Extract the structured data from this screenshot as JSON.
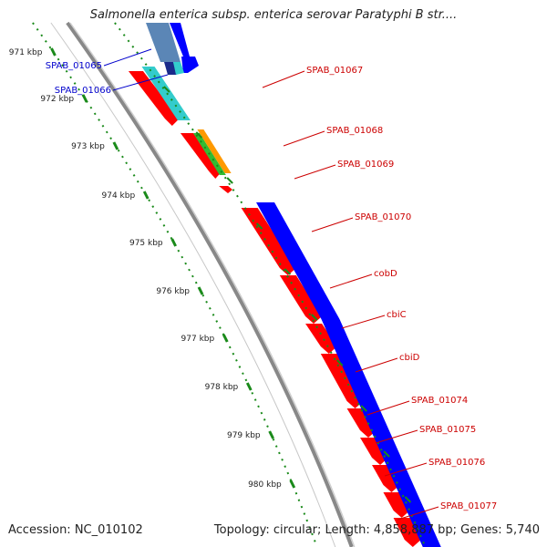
{
  "title": "Salmonella enterica subsp. enterica serovar Paratyphi B str....",
  "accession": "Accession: NC_010102",
  "summary": "Topology: circular; Length: 4,858,887 bp; Genes: 5,740",
  "colors": {
    "forward_cds": "#ff0000",
    "reverse_cds": "#0000ff",
    "cyan_feature": "#33cccc",
    "green_feature": "#33bb33",
    "orange_feature": "#ff9900",
    "steelblue_feature": "#5b86b6",
    "backbone": "#888888",
    "ruler": "#1a8a1a",
    "blue_label": "#0000cc",
    "red_label": "#cc0000"
  },
  "ticks": [
    "971 kbp",
    "972 kbp",
    "973 kbp",
    "974 kbp",
    "975 kbp",
    "976 kbp",
    "977 kbp",
    "978 kbp",
    "979 kbp",
    "980 kbp"
  ],
  "genes_left": [
    {
      "label": "SPAB_01065",
      "color": "blue"
    },
    {
      "label": "SPAB_01066",
      "color": "blue"
    }
  ],
  "genes_right": [
    {
      "label": "SPAB_01067",
      "color": "red"
    },
    {
      "label": "SPAB_01068",
      "color": "red"
    },
    {
      "label": "SPAB_01069",
      "color": "red"
    },
    {
      "label": "SPAB_01070",
      "color": "red"
    },
    {
      "label": "cobD",
      "color": "red"
    },
    {
      "label": "cbiC",
      "color": "red"
    },
    {
      "label": "cbiD",
      "color": "red"
    },
    {
      "label": "SPAB_01074",
      "color": "red"
    },
    {
      "label": "SPAB_01075",
      "color": "red"
    },
    {
      "label": "SPAB_01076",
      "color": "red"
    },
    {
      "label": "SPAB_01077",
      "color": "red"
    }
  ]
}
